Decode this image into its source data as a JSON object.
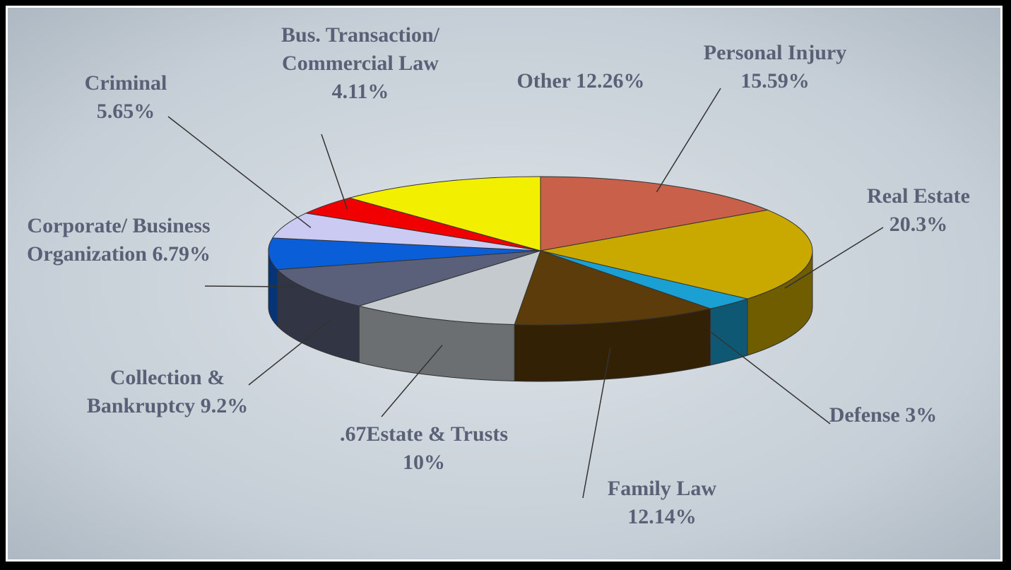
{
  "chart_data": {
    "type": "pie3d",
    "categories": [
      "Personal Injury",
      "Real Estate",
      "Defense",
      "Family Law",
      ".67Estate & Trusts",
      "Collection & Bankruptcy",
      "Corporate/ Business Organization",
      "Criminal",
      "Bus. Transaction/ Commercial Law",
      "Other"
    ],
    "values": [
      15.59,
      20.3,
      3,
      12.14,
      10,
      9.2,
      6.79,
      5.65,
      4.11,
      12.26
    ],
    "value_labels": [
      "15.59%",
      "20.3%",
      "3%",
      "12.14%",
      "10%",
      "9.2%",
      "6.79%",
      "5.65%",
      "4.11%",
      "12.26%"
    ],
    "colors": [
      "#c8604a",
      "#c9a900",
      "#1aa0d2",
      "#5c3c0a",
      "#c4cacd",
      "#5a6079",
      "#0a5fd8",
      "#cacaf2",
      "#f00000",
      "#f2f000"
    ]
  }
}
